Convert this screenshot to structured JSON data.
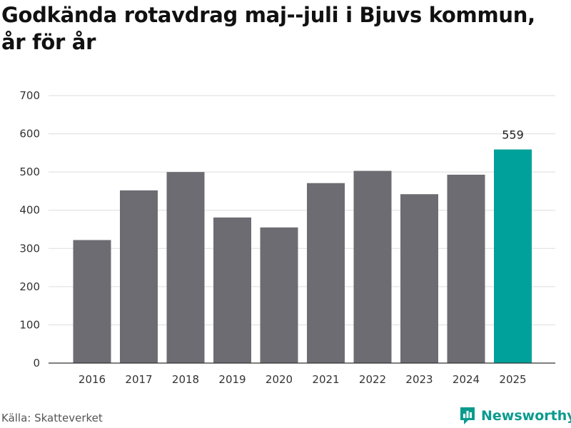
{
  "title": "Godkända rotavdrag maj--juli i Bjuvs kommun, år för år",
  "source": "Källa: Skatteverket",
  "brand": {
    "name": "Newsworthy",
    "icon": "newsworthy-logo-icon",
    "color": "#0a9b8e"
  },
  "colors": {
    "bar": "#6d6c72",
    "highlight": "#00a19a",
    "grid": "#dddddd"
  },
  "chart_data": {
    "type": "bar",
    "title": "Godkända rotavdrag maj--juli i Bjuvs kommun, år för år",
    "xlabel": "",
    "ylabel": "",
    "categories": [
      "2016",
      "2017",
      "2018",
      "2019",
      "2020",
      "2021",
      "2022",
      "2023",
      "2024",
      "2025"
    ],
    "values": [
      322,
      452,
      500,
      381,
      355,
      471,
      503,
      442,
      493,
      559
    ],
    "ylim": [
      0,
      700
    ],
    "yticks": [
      0,
      100,
      200,
      300,
      400,
      500,
      600,
      700
    ],
    "highlight_index": 9,
    "data_labels": [
      {
        "index": 9,
        "text": "559"
      }
    ],
    "grid": true,
    "legend": "none"
  }
}
